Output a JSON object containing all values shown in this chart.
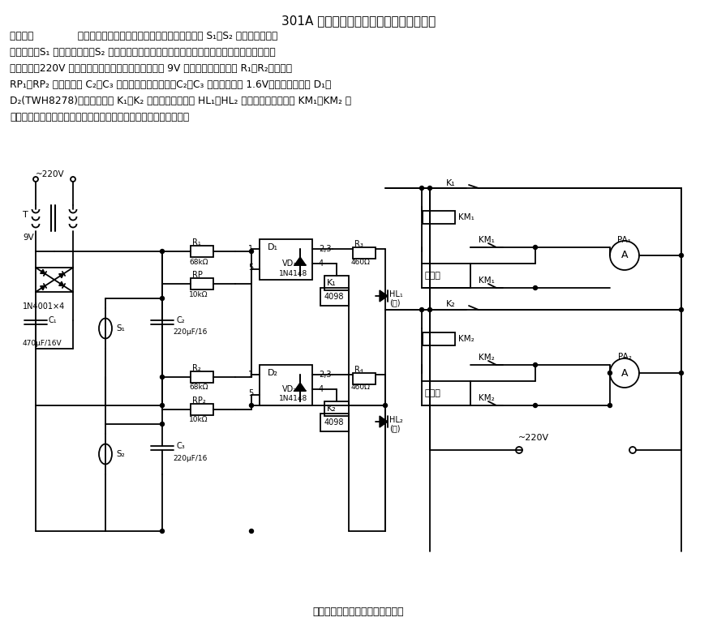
{
  "title": "301A 型调温、调湿箱控制电路的改进电路",
  "subtitle": "调温、调湿箱控制电路的改进电路",
  "bg_color": "#ffffff",
  "text_color": "#000000",
  "description_lines": [
    "电路如图              所示。控制电路中有两个功能相同的单元，开关 S₁、S₂ 分别为电接点水",
    "银温度计，S₁ 用来测量温度。S₂ 用来测量湿度。使用时，首先调节好所要求的温度、湿度，然后",
    "接通电源。220V 交流电经变压器降压、整流后输出约 9V 的直流电，经过电阻 R₁、R₂、电位器",
    "RP₁、RP₂ 分别向电容 C₂、C₃ 充电，经一段时间后，C₂、C₃ 上端压上升到 1.6V，开关集成电路 D₁、",
    "D₂(TWH8278)导通，继电器 K₁、K₂ 得电吸合，指示灯 HL₁、HL₂ 发光，同时，接触器 KM₁、KM₂ 吸",
    "合，接通相应的加热器、加湿器工作电源，工作箱内开始升温加湿。"
  ]
}
